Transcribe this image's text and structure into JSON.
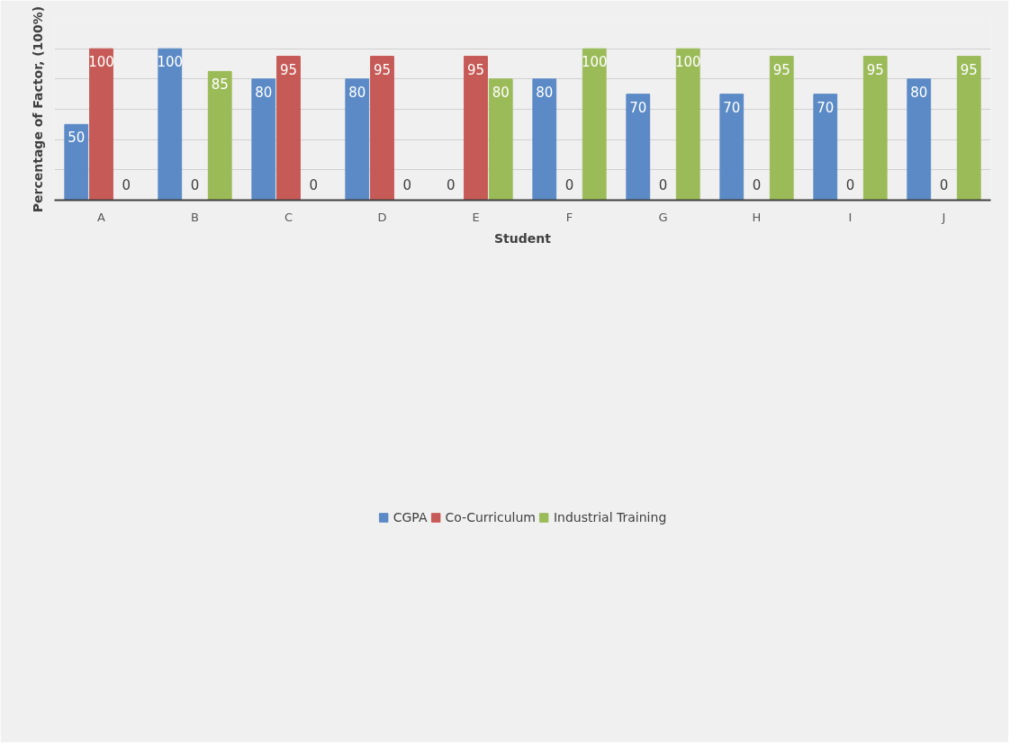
{
  "chart_data": {
    "type": "bar",
    "xlabel": "Student",
    "ylabel": "Percentage of Factor, (100%)",
    "categories": [
      "A",
      "B",
      "C",
      "D",
      "E",
      "F",
      "G",
      "H",
      "I",
      "J"
    ],
    "series": [
      {
        "name": "CGPA",
        "color": "#5b8ac6",
        "values": [
          50,
          100,
          80,
          80,
          0,
          80,
          70,
          70,
          70,
          80
        ]
      },
      {
        "name": "Co-Curriculum",
        "color": "#c65a57",
        "values": [
          100,
          0,
          95,
          95,
          95,
          0,
          0,
          0,
          0,
          0
        ]
      },
      {
        "name": "Industrial Training",
        "color": "#9bbb59",
        "values": [
          0,
          85,
          0,
          0,
          80,
          100,
          100,
          95,
          95,
          95
        ]
      }
    ],
    "ylim": [
      0,
      120
    ],
    "yticks": [
      {
        "value": 0,
        "label": null
      },
      {
        "value": 20,
        "label": null
      },
      {
        "value": 40,
        "label": null
      },
      {
        "value": 60,
        "label": null
      },
      {
        "value": 80,
        "label": null
      },
      {
        "value": 100,
        "label": null
      },
      {
        "value": 120,
        "label": null
      }
    ],
    "tick_labels": "x",
    "grid": "y",
    "legend": "bottom",
    "data_labels": true
  }
}
